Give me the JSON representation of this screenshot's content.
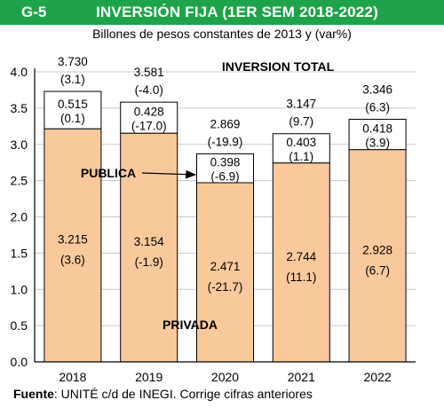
{
  "header": {
    "code": "G-5",
    "title": "INVERSIÓN FIJA (1ER SEM 2018-2022)",
    "subtitle": "Billones de pesos constantes de 2013 y (var%)"
  },
  "source": {
    "label": "Fuente",
    "text": ": UNITÉ c/d de INEGI. Corrige cifras anteriores"
  },
  "colors": {
    "title_bar": "#1fa34a",
    "privada": "#f9c99c",
    "publica": "#ffffff",
    "outline": "#000000"
  },
  "chart_data": {
    "type": "bar",
    "stacked": true,
    "categories": [
      "2018",
      "2019",
      "2020",
      "2021",
      "2022"
    ],
    "series": [
      {
        "name": "PRIVADA",
        "values": [
          3.215,
          3.154,
          2.471,
          2.744,
          2.928
        ],
        "labels": [
          "3.215",
          "3.154",
          "2.471",
          "2.744",
          "2.928"
        ],
        "var_labels": [
          "(3.6)",
          "(-1.9)",
          "(-21.7)",
          "(11.1)",
          "(6.7)"
        ]
      },
      {
        "name": "PUBLICA",
        "values": [
          0.515,
          0.428,
          0.398,
          0.403,
          0.418
        ],
        "labels": [
          "0.515",
          "0.428",
          "0.398",
          "0.403",
          "0.418"
        ],
        "var_labels": [
          "(0.1)",
          "(-17.0)",
          "(-6.9)",
          "(1.1)",
          "(3.9)"
        ]
      }
    ],
    "total": {
      "name": "INVERSION TOTAL",
      "values": [
        3.73,
        3.581,
        2.869,
        3.147,
        3.346
      ],
      "labels": [
        "3.730",
        "3.581",
        "2.869",
        "3.147",
        "3.346"
      ],
      "var_labels": [
        "(3.1)",
        "(-4.0)",
        "(-19.9)",
        "(9.7)",
        "(6.3)"
      ]
    },
    "yticks": [
      "0.0",
      "0.5",
      "1.0",
      "1.5",
      "2.0",
      "2.5",
      "3.0",
      "3.5",
      "4.0"
    ],
    "ylim": [
      0,
      4.0
    ],
    "grid": true,
    "annotation_publica": "PUBLICA",
    "annotation_privada": "PRIVADA"
  }
}
